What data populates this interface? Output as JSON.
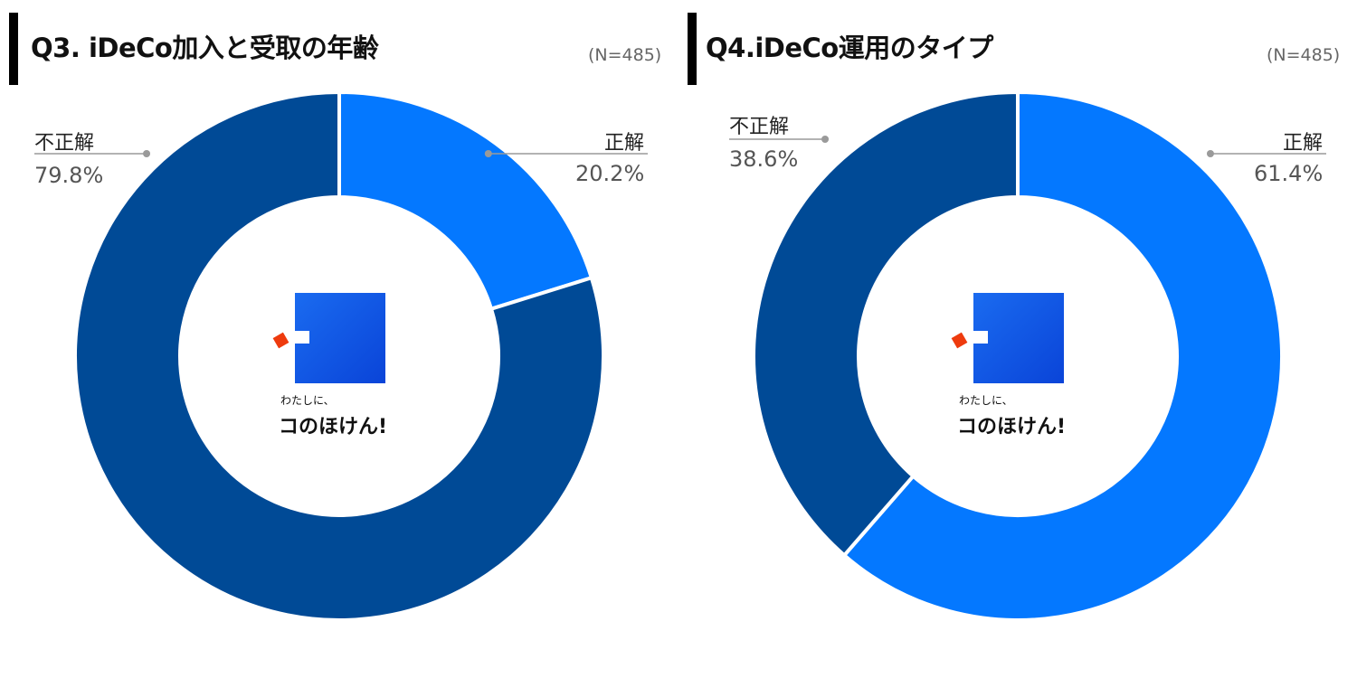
{
  "colors": {
    "correct": "#0478FF",
    "incorrect": "#004A96",
    "logo_square": "#0A52E6",
    "logo_mark": "#EE3B0E",
    "leader_line": "#9a9a9a"
  },
  "logo": {
    "tagline": "わたしに、",
    "brand": "コのほけん!"
  },
  "chart_data": [
    {
      "type": "pie",
      "title": "Q3. iDeCo加入と受取の年齢",
      "n_label": "(N=485)",
      "slices": [
        {
          "label": "正解",
          "value": 20.2,
          "display": "20.2%"
        },
        {
          "label": "不正解",
          "value": 79.8,
          "display": "79.8%"
        }
      ]
    },
    {
      "type": "pie",
      "title": "Q4.iDeCo運用のタイプ",
      "n_label": "(N=485)",
      "slices": [
        {
          "label": "正解",
          "value": 61.4,
          "display": "61.4%"
        },
        {
          "label": "不正解",
          "value": 38.6,
          "display": "38.6%"
        }
      ]
    }
  ]
}
